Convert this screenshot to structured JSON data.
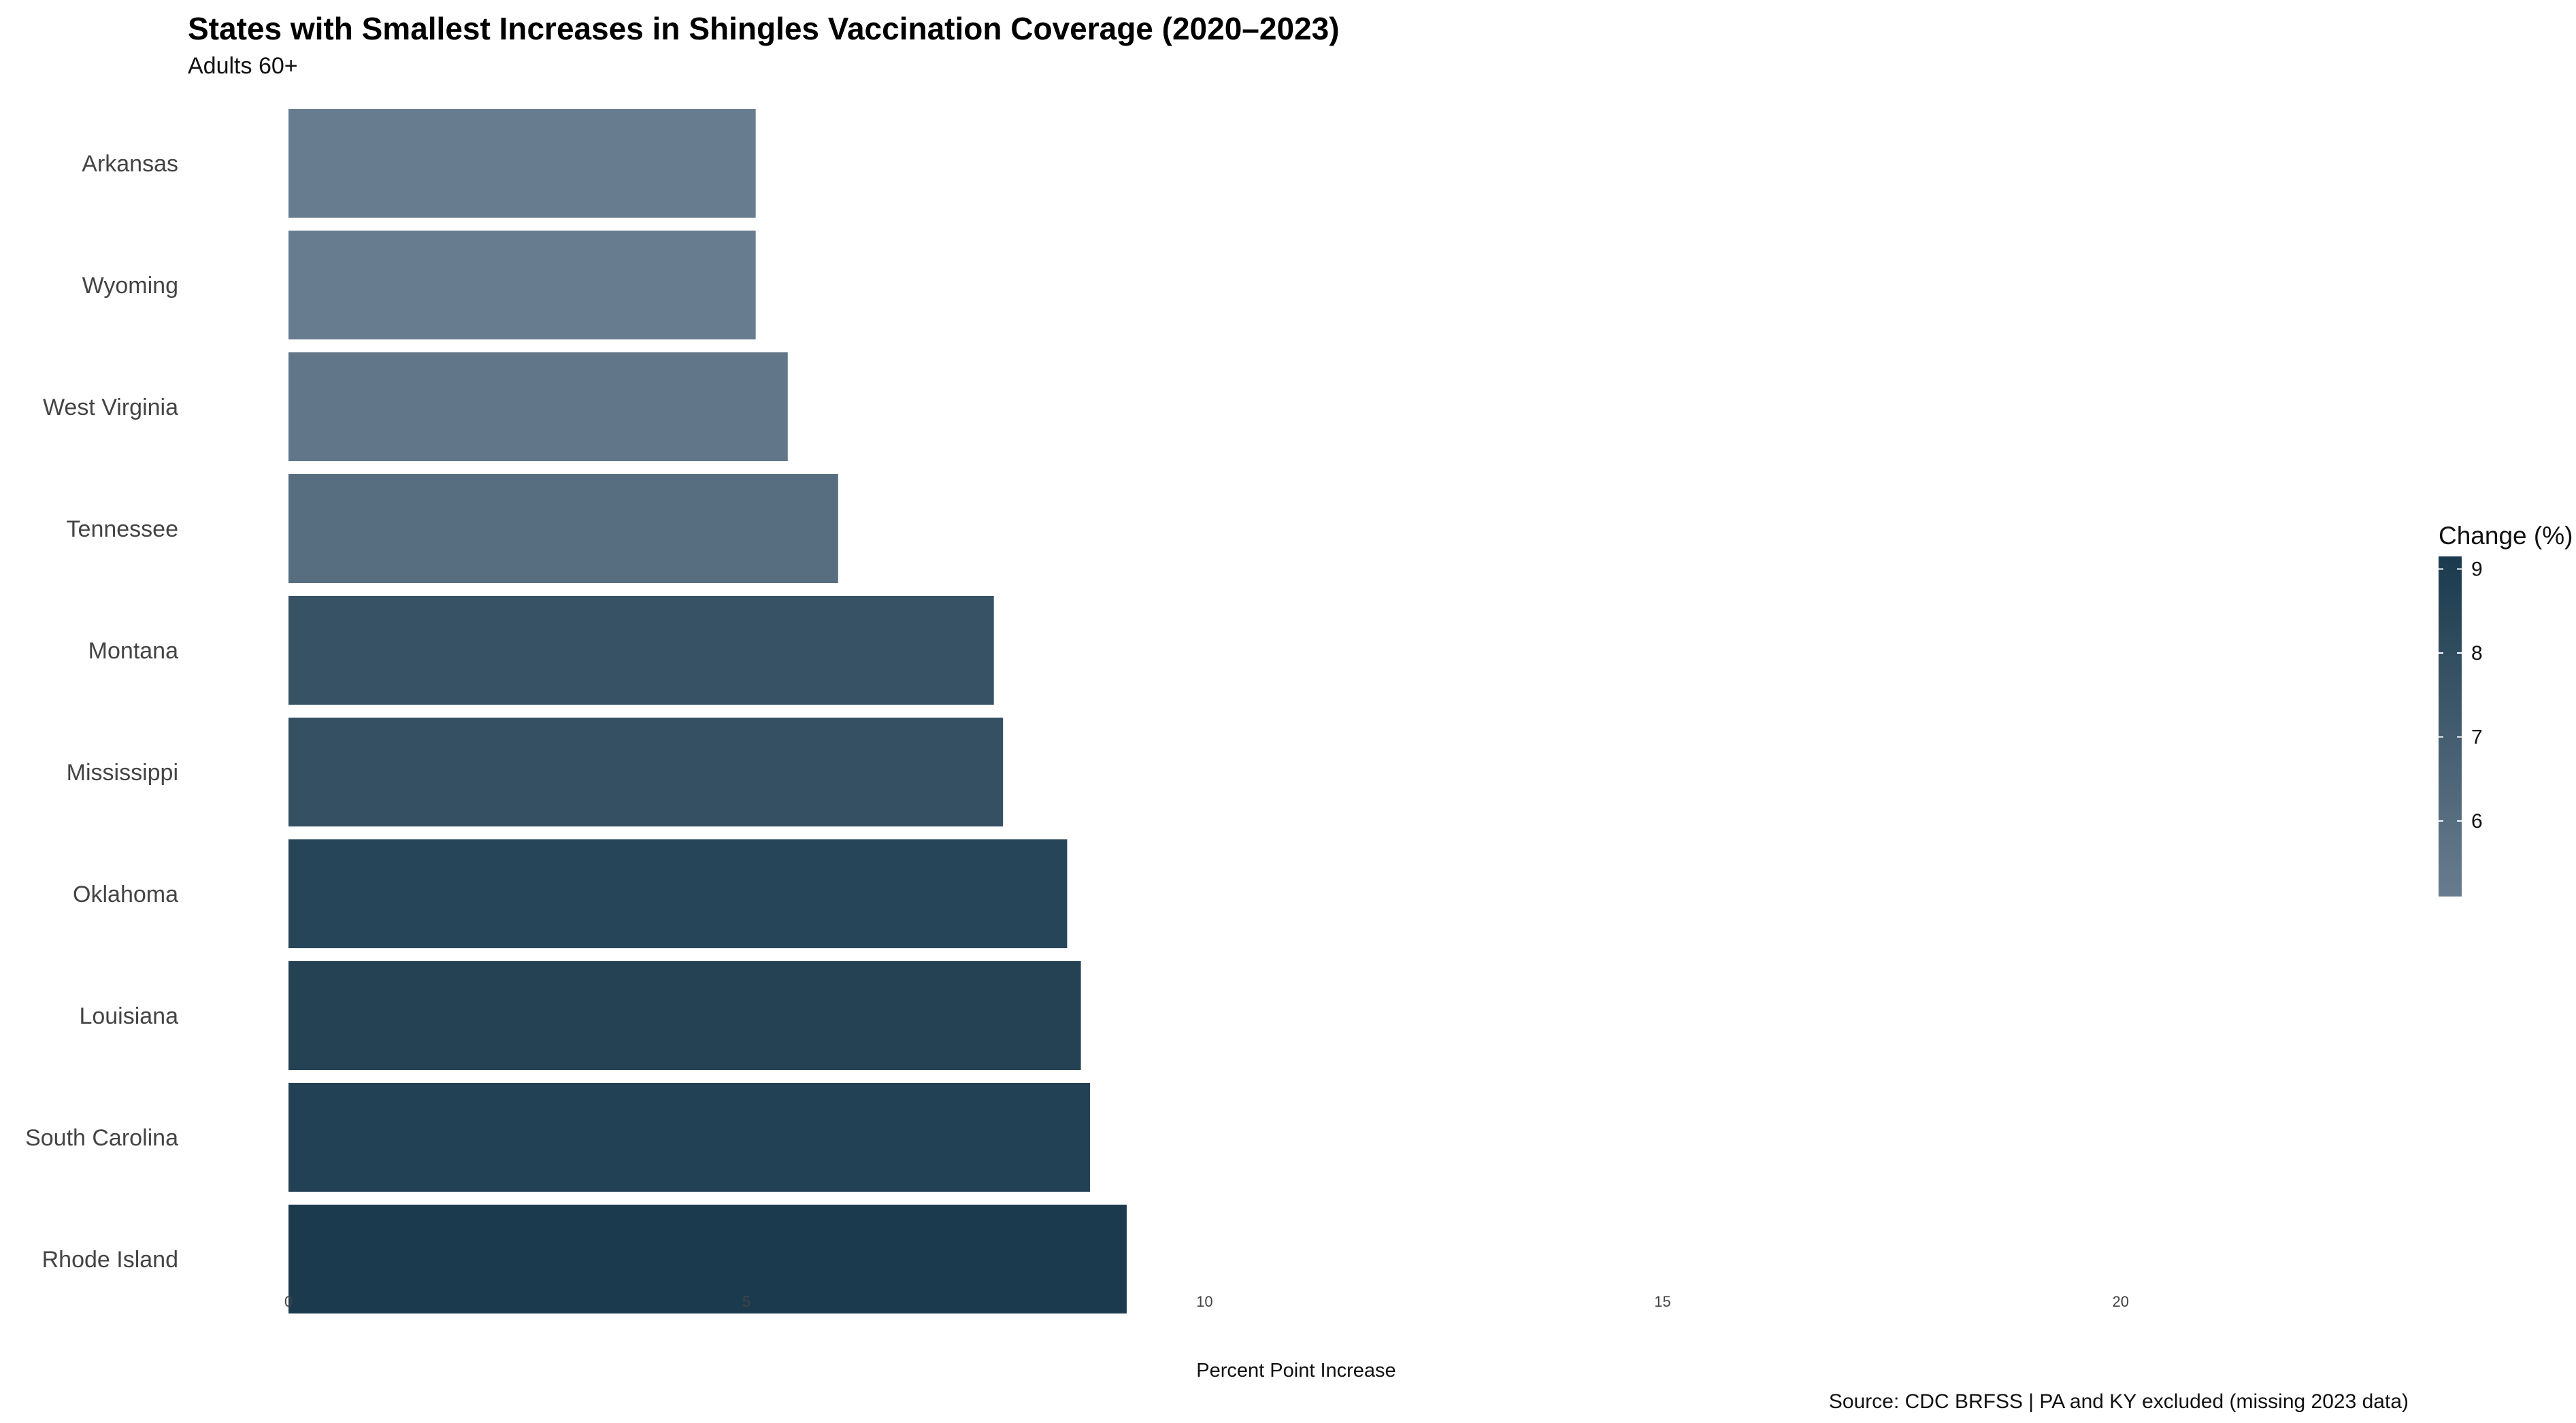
{
  "chart_data": {
    "type": "bar",
    "orientation": "horizontal",
    "title": "States with Smallest Increases in Shingles Vaccination Coverage (2020–2023)",
    "subtitle": "Adults 60+",
    "xlabel": "Percent Point Increase",
    "ylabel": "",
    "caption": "Source: CDC BRFSS | PA and KY excluded (missing 2023 data)",
    "xlim": [
      0,
      22
    ],
    "xticks": [
      0,
      5,
      10,
      15,
      20
    ],
    "grid": false,
    "categories": [
      "Arkansas",
      "Wyoming",
      "West Virginia",
      "Tennessee",
      "Montana",
      "Mississippi",
      "Oklahoma",
      "Louisiana",
      "South Carolina",
      "Rhode Island"
    ],
    "values": [
      5.1,
      5.1,
      5.45,
      6.0,
      7.7,
      7.8,
      8.5,
      8.65,
      8.75,
      9.15
    ],
    "color_scale": {
      "low": "#687c8f",
      "high": "#1b3a4d",
      "min": 5.1,
      "max": 9.15
    },
    "legend": {
      "title": "Change (%)",
      "placement": "right",
      "ticks": [
        6,
        7,
        8,
        9
      ]
    }
  }
}
